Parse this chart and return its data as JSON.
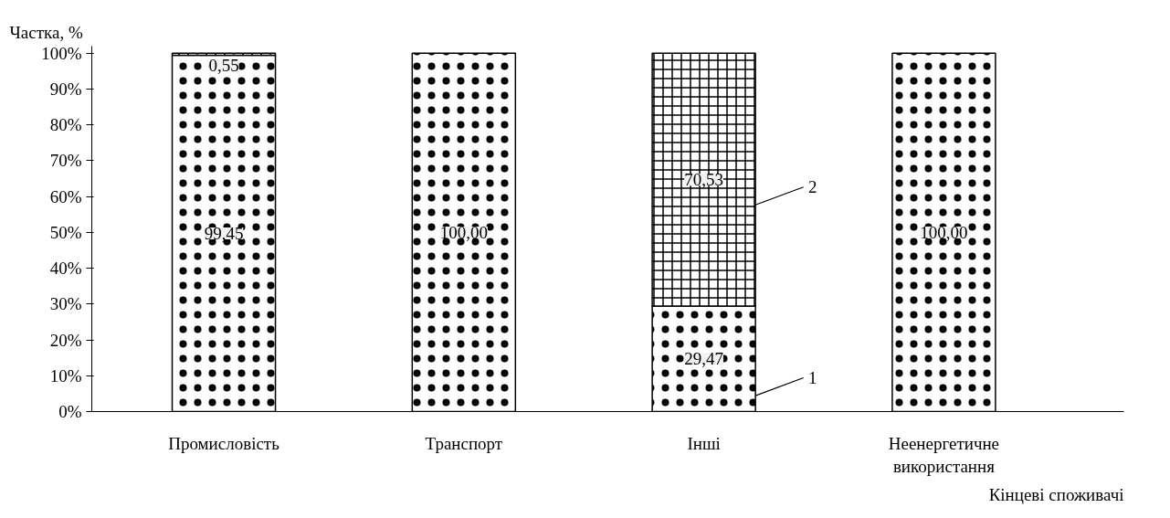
{
  "chart_data": {
    "type": "bar",
    "stacked": true,
    "xlabel": "Кінцеві споживачі",
    "ylabel": "Частка, %",
    "categories": [
      "Промисловість",
      "Транспорт",
      "Інші",
      "Неенергетичне використання"
    ],
    "series": [
      {
        "name": "1",
        "color": "#000000",
        "values": [
          99.45,
          100.0,
          29.47,
          100.0
        ],
        "value_labels": [
          "99,45",
          "100,00",
          "29,47",
          "100,00"
        ]
      },
      {
        "name": "2",
        "color": "#000000",
        "values": [
          0.55,
          0,
          70.53,
          0
        ],
        "value_labels": [
          "0,55",
          null,
          "70,53",
          null
        ]
      }
    ],
    "ylim": [
      0,
      100
    ],
    "yticks": [
      {
        "value": 0,
        "label": "0%"
      },
      {
        "value": 10,
        "label": "10%"
      },
      {
        "value": 20,
        "label": "20%"
      },
      {
        "value": 30,
        "label": "30%"
      },
      {
        "value": 40,
        "label": "40%"
      },
      {
        "value": 50,
        "label": "50%"
      },
      {
        "value": 60,
        "label": "60%"
      },
      {
        "value": 70,
        "label": "70%"
      },
      {
        "value": 80,
        "label": "80%"
      },
      {
        "value": 90,
        "label": "90%"
      },
      {
        "value": 100,
        "label": "100%"
      }
    ],
    "grid": false,
    "legend": "right"
  }
}
